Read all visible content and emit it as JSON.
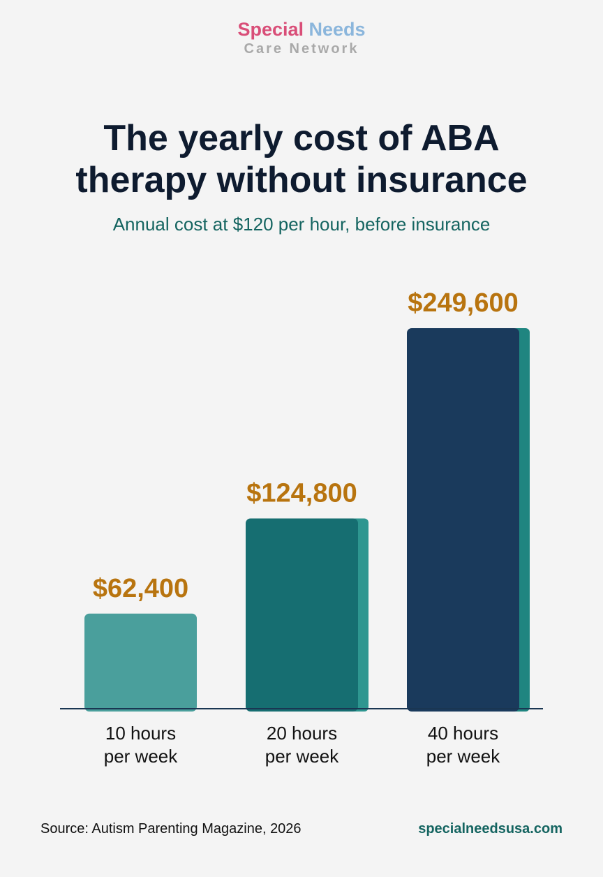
{
  "brand": {
    "line1_part1": "Special",
    "line1_part2": "Needs",
    "line2": "Care Network"
  },
  "footer": {
    "source": "Source: Autism Parenting Magazine, 2026",
    "website": "specialneedsusa.com"
  },
  "colors": {
    "value_label": "#b8740f",
    "axis": "#1a3652",
    "bars": [
      "#4a9f9c",
      "#166e71",
      "#1a3a5c"
    ],
    "bar_sides": [
      "#4a9f9c",
      "#2e9690",
      "#1f8580"
    ]
  },
  "chart_data": {
    "type": "bar",
    "title": "The yearly cost of ABA therapy without insurance",
    "subtitle": "Annual cost at $120 per hour, before insurance",
    "categories": [
      [
        "10 hours",
        "per week"
      ],
      [
        "20 hours",
        "per week"
      ],
      [
        "40 hours",
        "per week"
      ]
    ],
    "values": [
      62400,
      124800,
      249600
    ],
    "value_labels": [
      "$62,400",
      "$124,800",
      "$249,600"
    ],
    "xlabel": "",
    "ylabel": "",
    "ylim": [
      0,
      249600
    ],
    "grid": false,
    "legend": "none"
  }
}
